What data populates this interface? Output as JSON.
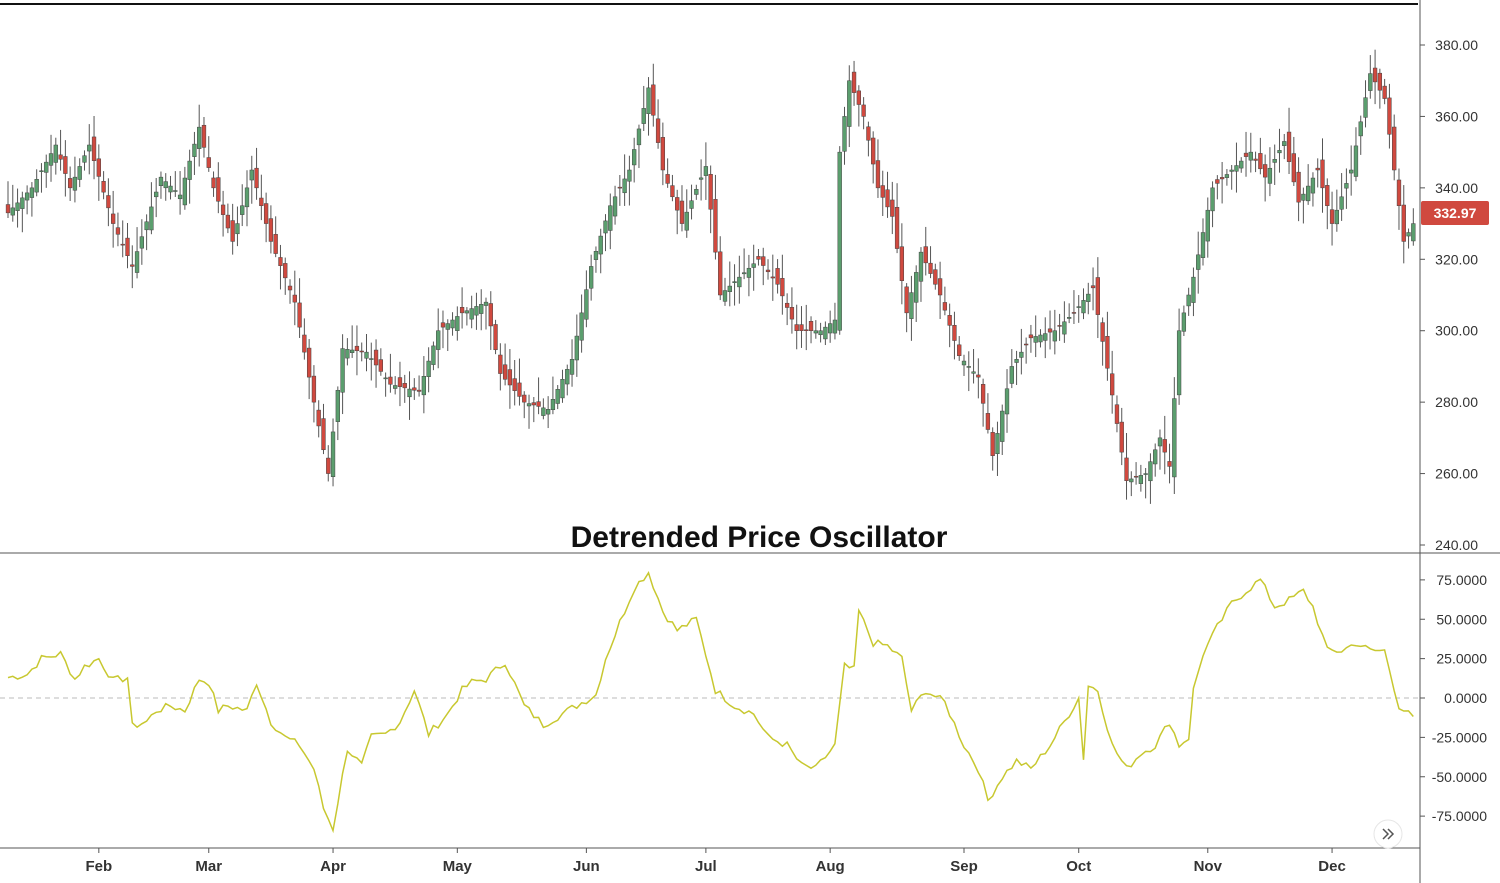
{
  "chart_data": [
    {
      "type": "candlestick",
      "title": "",
      "ylim": [
        240,
        390
      ],
      "y_ticks": [
        "380.00",
        "360.00",
        "340.00",
        "320.00",
        "300.00",
        "280.00",
        "260.00",
        "240.00"
      ],
      "y_tick_values": [
        380,
        360,
        340,
        320,
        300,
        280,
        260,
        240
      ],
      "last_price_label": "332.97",
      "last_price": 332.97,
      "colors": {
        "up": "#5b9e6e",
        "down": "#d0493f",
        "wick": "#555555",
        "badge": "#d0493f"
      },
      "anchor_closes": [
        [
          0,
          333
        ],
        [
          5,
          340
        ],
        [
          10,
          352
        ],
        [
          13,
          340
        ],
        [
          17,
          352
        ],
        [
          22,
          330
        ],
        [
          26,
          318
        ],
        [
          32,
          343
        ],
        [
          36,
          338
        ],
        [
          40,
          357
        ],
        [
          43,
          340
        ],
        [
          47,
          325
        ],
        [
          51,
          345
        ],
        [
          55,
          325
        ],
        [
          60,
          308
        ],
        [
          64,
          280
        ],
        [
          67,
          260
        ],
        [
          70,
          295
        ],
        [
          75,
          294
        ],
        [
          80,
          285
        ],
        [
          86,
          283
        ],
        [
          90,
          300
        ],
        [
          95,
          305
        ],
        [
          100,
          308
        ],
        [
          103,
          288
        ],
        [
          108,
          280
        ],
        [
          113,
          278
        ],
        [
          118,
          292
        ],
        [
          122,
          318
        ],
        [
          126,
          335
        ],
        [
          130,
          345
        ],
        [
          134,
          368
        ],
        [
          137,
          345
        ],
        [
          141,
          330
        ],
        [
          146,
          346
        ],
        [
          149,
          310
        ],
        [
          153,
          315
        ],
        [
          157,
          320
        ],
        [
          161,
          313
        ],
        [
          165,
          300
        ],
        [
          170,
          300
        ],
        [
          173,
          303
        ],
        [
          174,
          350
        ],
        [
          176,
          370
        ],
        [
          179,
          360
        ],
        [
          182,
          340
        ],
        [
          185,
          332
        ],
        [
          188,
          305
        ],
        [
          191,
          322
        ],
        [
          195,
          310
        ],
        [
          199,
          293
        ],
        [
          203,
          287
        ],
        [
          206,
          265
        ],
        [
          210,
          290
        ],
        [
          214,
          298
        ],
        [
          219,
          300
        ],
        [
          223,
          305
        ],
        [
          227,
          312
        ],
        [
          231,
          282
        ],
        [
          234,
          258
        ],
        [
          238,
          260
        ],
        [
          241,
          270
        ],
        [
          243,
          262
        ],
        [
          245,
          300
        ],
        [
          248,
          315
        ],
        [
          252,
          340
        ],
        [
          256,
          345
        ],
        [
          260,
          350
        ],
        [
          263,
          343
        ],
        [
          267,
          353
        ],
        [
          270,
          336
        ],
        [
          274,
          345
        ],
        [
          277,
          330
        ],
        [
          281,
          345
        ],
        [
          285,
          372
        ],
        [
          288,
          365
        ],
        [
          292,
          325
        ],
        [
          294,
          330
        ]
      ]
    },
    {
      "type": "line",
      "title": "Detrended Price Oscillator",
      "ylim": [
        -90,
        90
      ],
      "y_ticks": [
        "75.0000",
        "50.0000",
        "25.0000",
        "0.0000",
        "-25.0000",
        "-50.0000",
        "-75.0000"
      ],
      "y_tick_values": [
        75,
        50,
        25,
        0,
        -25,
        -50,
        -75
      ],
      "colors": {
        "line": "#c8c830",
        "zero": "#bbbbbb"
      },
      "x_ticks": [
        "Feb",
        "Mar",
        "Apr",
        "May",
        "Jun",
        "Jul",
        "Aug",
        "Sep",
        "Oct",
        "Nov",
        "Dec"
      ],
      "x_tick_bars": [
        19,
        42,
        68,
        94,
        121,
        146,
        172,
        200,
        224,
        251,
        277
      ],
      "n_points": 295,
      "anchor_values": [
        [
          0,
          13
        ],
        [
          4,
          15
        ],
        [
          7,
          25
        ],
        [
          11,
          28
        ],
        [
          14,
          12
        ],
        [
          16,
          20
        ],
        [
          19,
          25
        ],
        [
          22,
          11
        ],
        [
          25,
          13
        ],
        [
          26,
          -18
        ],
        [
          29,
          -15
        ],
        [
          31,
          -8
        ],
        [
          34,
          -5
        ],
        [
          37,
          -8
        ],
        [
          40,
          12
        ],
        [
          42,
          10
        ],
        [
          44,
          -8
        ],
        [
          46,
          -5
        ],
        [
          50,
          -8
        ],
        [
          52,
          10
        ],
        [
          55,
          -15
        ],
        [
          58,
          -25
        ],
        [
          61,
          -30
        ],
        [
          64,
          -45
        ],
        [
          66,
          -70
        ],
        [
          68,
          -83
        ],
        [
          71,
          -32
        ],
        [
          74,
          -43
        ],
        [
          76,
          -25
        ],
        [
          79,
          -23
        ],
        [
          82,
          -15
        ],
        [
          85,
          5
        ],
        [
          88,
          -23
        ],
        [
          92,
          -10
        ],
        [
          95,
          5
        ],
        [
          97,
          10
        ],
        [
          100,
          12
        ],
        [
          104,
          23
        ],
        [
          108,
          -5
        ],
        [
          112,
          -17
        ],
        [
          116,
          -10
        ],
        [
          120,
          -3
        ],
        [
          123,
          2
        ],
        [
          125,
          25
        ],
        [
          128,
          48
        ],
        [
          131,
          70
        ],
        [
          134,
          80
        ],
        [
          137,
          55
        ],
        [
          140,
          43
        ],
        [
          144,
          50
        ],
        [
          148,
          5
        ],
        [
          152,
          -5
        ],
        [
          156,
          -10
        ],
        [
          159,
          -25
        ],
        [
          163,
          -30
        ],
        [
          166,
          -43
        ],
        [
          169,
          -45
        ],
        [
          173,
          -30
        ],
        [
          175,
          20
        ],
        [
          177,
          18
        ],
        [
          178,
          55
        ],
        [
          181,
          35
        ],
        [
          184,
          33
        ],
        [
          187,
          25
        ],
        [
          189,
          -8
        ],
        [
          192,
          5
        ],
        [
          196,
          -3
        ],
        [
          200,
          -30
        ],
        [
          203,
          -45
        ],
        [
          205,
          -65
        ],
        [
          208,
          -50
        ],
        [
          211,
          -40
        ],
        [
          214,
          -45
        ],
        [
          218,
          -30
        ],
        [
          221,
          -15
        ],
        [
          224,
          0
        ],
        [
          225,
          -38
        ],
        [
          226,
          8
        ],
        [
          228,
          5
        ],
        [
          231,
          -30
        ],
        [
          234,
          -45
        ],
        [
          237,
          -35
        ],
        [
          240,
          -30
        ],
        [
          243,
          -15
        ],
        [
          245,
          -30
        ],
        [
          247,
          -25
        ],
        [
          248,
          5
        ],
        [
          250,
          28
        ],
        [
          253,
          45
        ],
        [
          256,
          60
        ],
        [
          259,
          68
        ],
        [
          262,
          75
        ],
        [
          265,
          58
        ],
        [
          268,
          62
        ],
        [
          271,
          68
        ],
        [
          273,
          58
        ],
        [
          276,
          30
        ],
        [
          279,
          30
        ],
        [
          282,
          35
        ],
        [
          285,
          30
        ],
        [
          288,
          30
        ],
        [
          291,
          -5
        ],
        [
          294,
          -13
        ]
      ]
    }
  ]
}
